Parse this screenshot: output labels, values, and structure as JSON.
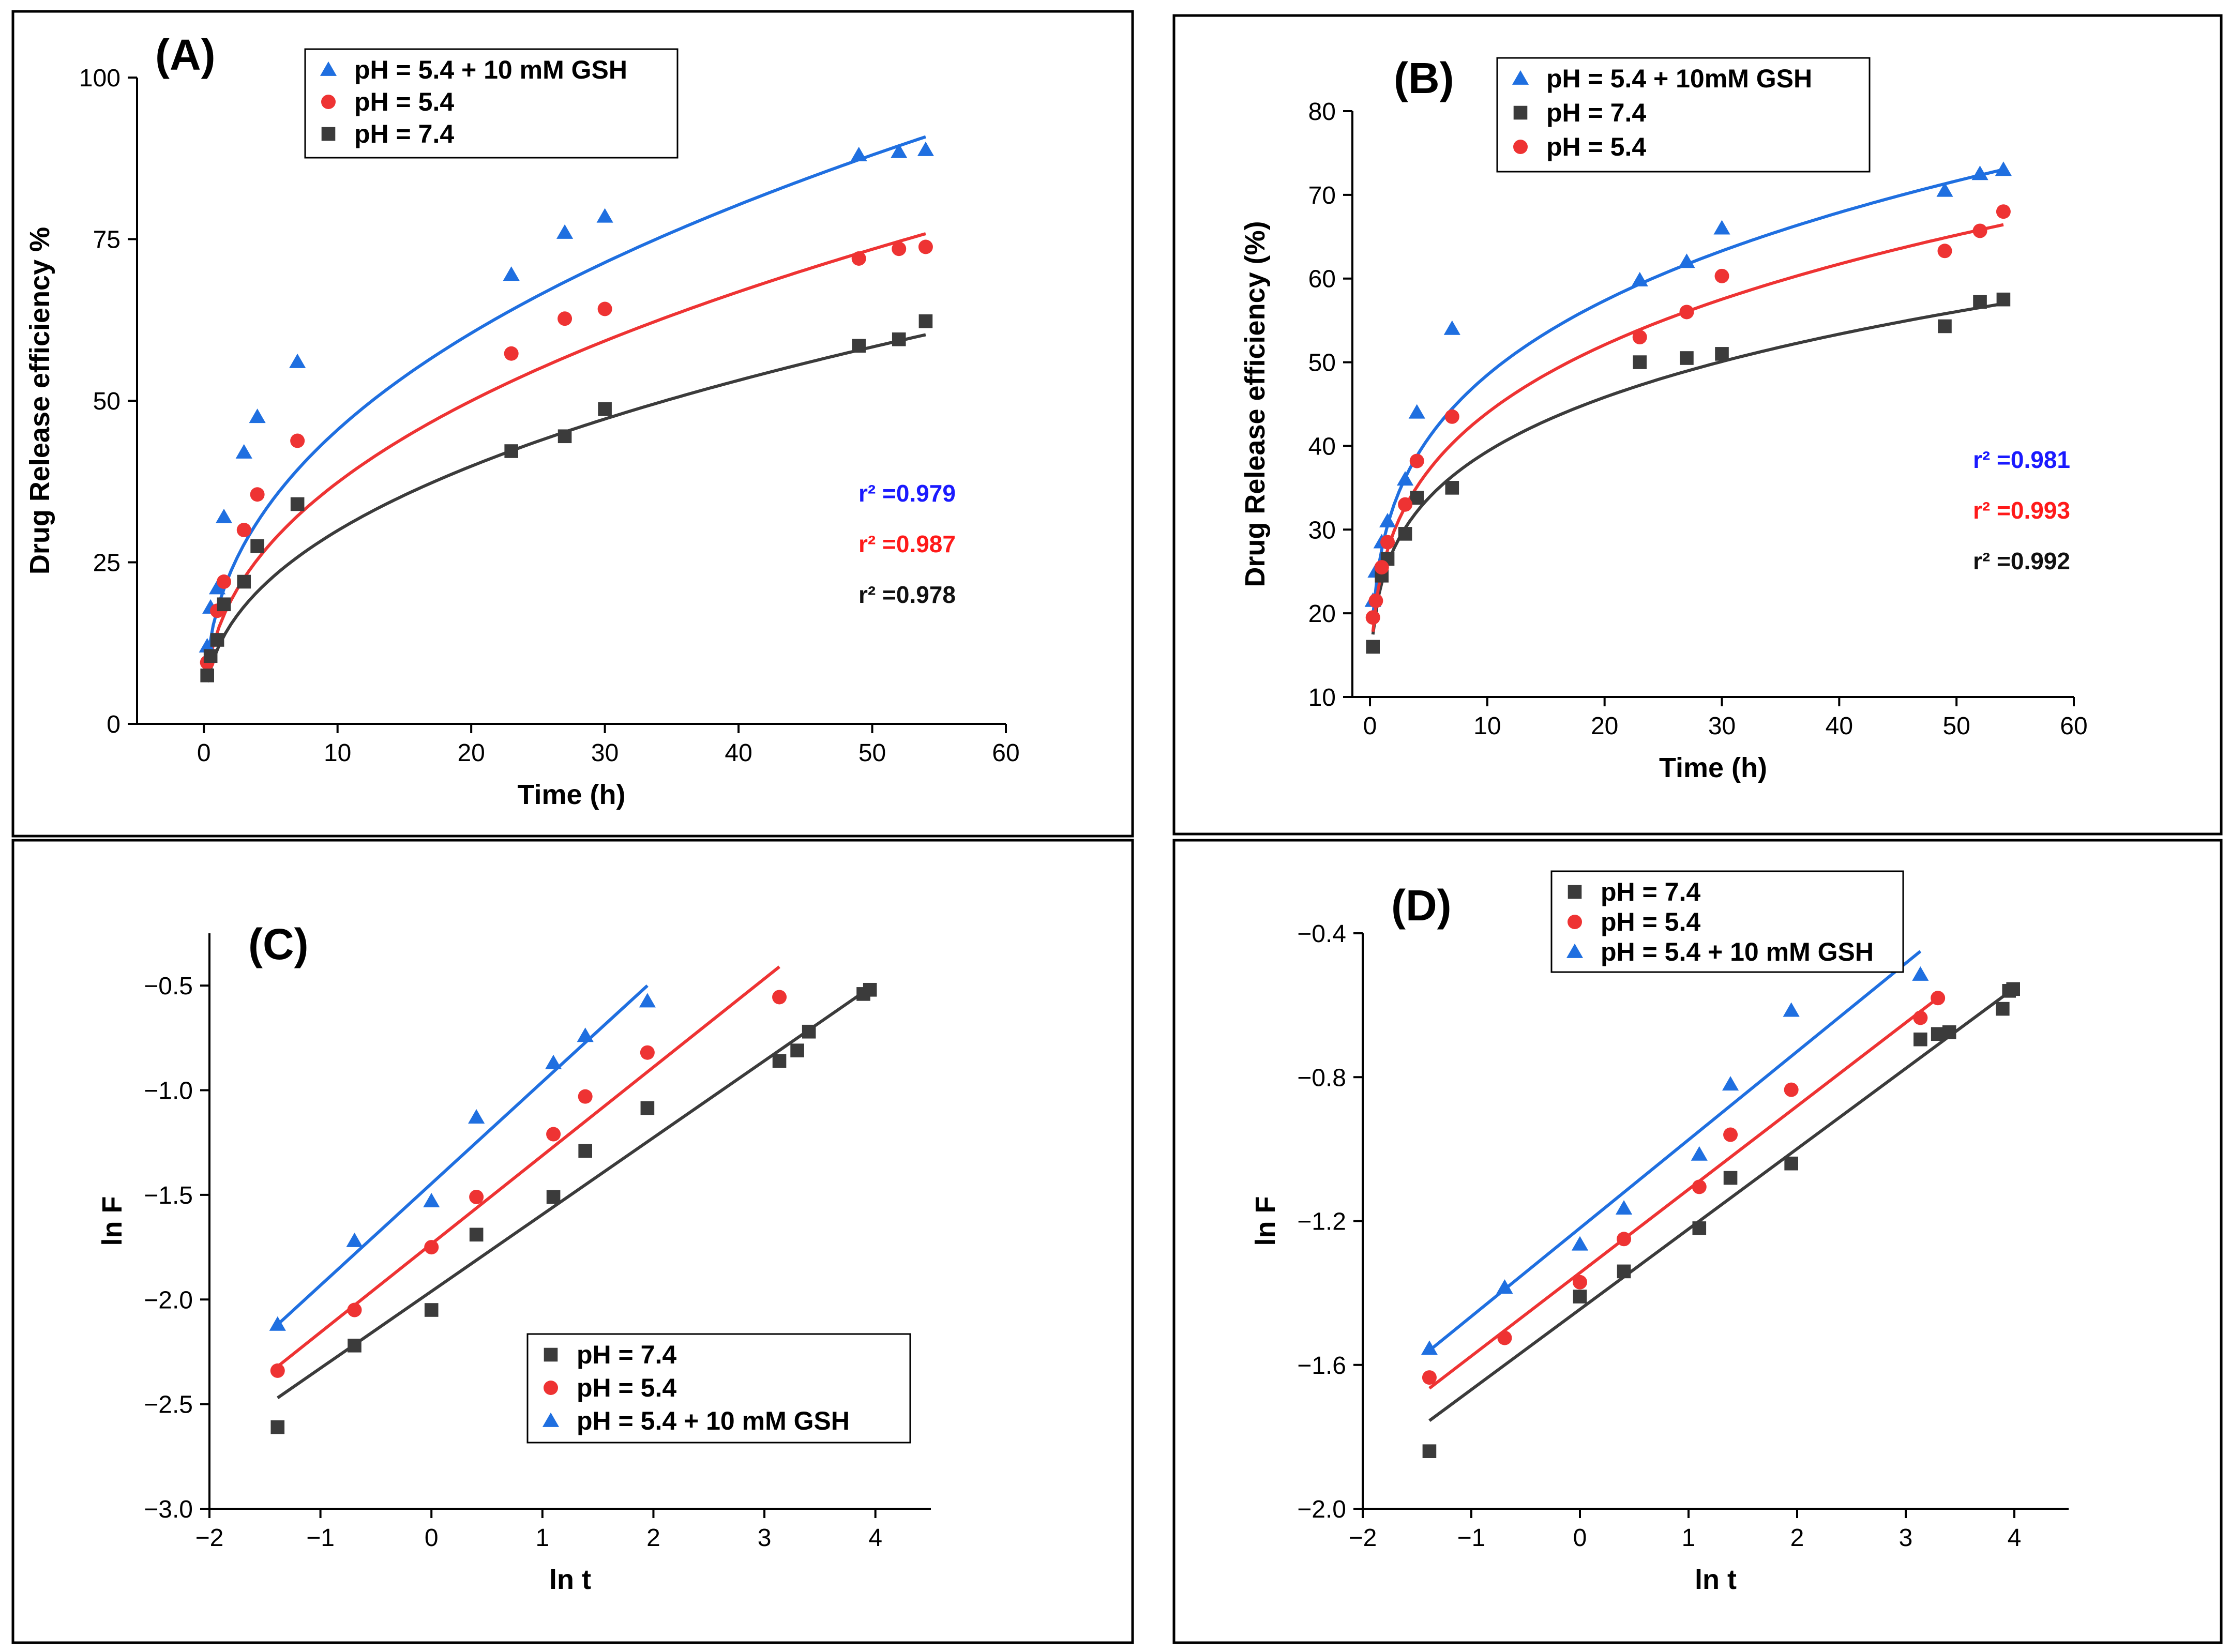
{
  "colors": {
    "black": "#3b3b3b",
    "red": "#ee3333",
    "blue": "#1f6fe0",
    "r2_blue": "#1a1aff",
    "r2_red": "#ff1a1a",
    "r2_black": "#111111"
  },
  "chart_data": [
    {
      "id": "A",
      "panel_label": "(A)",
      "type": "scatter",
      "fit": "power",
      "xlabel": "Time (h)",
      "ylabel": "Drug Release efficiency %",
      "xlim": [
        -5,
        60
      ],
      "ylim": [
        0,
        100
      ],
      "xticks": [
        0,
        10,
        20,
        30,
        40,
        50,
        60
      ],
      "yticks": [
        0,
        25,
        50,
        75,
        100
      ],
      "legend_position": "top-left",
      "series": [
        {
          "name": "pH = 5.4 + 10 mM GSH",
          "color_key": "blue",
          "marker": "triangle",
          "x": [
            0.25,
            0.5,
            1,
            1.5,
            3,
            4,
            7,
            23,
            27,
            30,
            49,
            52,
            54
          ],
          "y": [
            12,
            18,
            21,
            32,
            42,
            47.5,
            56,
            69.5,
            76,
            78.5,
            88,
            88.5,
            88.8
          ],
          "fit_a": 17.7,
          "fit_b": 0.41,
          "r2": "r² =0.979",
          "r2_color_key": "r2_blue"
        },
        {
          "name": "pH = 5.4",
          "color_key": "red",
          "marker": "circle",
          "x": [
            0.25,
            1,
            1.5,
            3,
            4,
            7,
            23,
            27,
            30,
            49,
            52,
            54
          ],
          "y": [
            9.5,
            17.5,
            22,
            30,
            35.5,
            43.8,
            57.3,
            62.7,
            64.2,
            72,
            73.5,
            73.8
          ],
          "fit_a": 14.2,
          "fit_b": 0.42,
          "r2": "r² =0.987",
          "r2_color_key": "r2_red"
        },
        {
          "name": "pH = 7.4",
          "color_key": "black",
          "marker": "square",
          "x": [
            0.25,
            0.5,
            1,
            1.5,
            3,
            4,
            7,
            23,
            27,
            30,
            49,
            52,
            54
          ],
          "y": [
            7.5,
            10.5,
            13,
            18.5,
            22,
            27.5,
            34,
            42.2,
            44.5,
            48.7,
            58.5,
            59.5,
            62.3
          ],
          "fit_a": 11.5,
          "fit_b": 0.415,
          "r2": "r² =0.978",
          "r2_color_key": "r2_black"
        }
      ],
      "legend_order": [
        0,
        1,
        2
      ]
    },
    {
      "id": "B",
      "panel_label": "(B)",
      "type": "scatter",
      "fit": "power",
      "xlabel": "Time (h)",
      "ylabel": "Drug Release efficiency (%)",
      "xlim": [
        -1.5,
        60
      ],
      "ylim": [
        10,
        80
      ],
      "xticks": [
        0,
        10,
        20,
        30,
        40,
        50,
        60
      ],
      "yticks": [
        10,
        20,
        30,
        40,
        50,
        60,
        70,
        80
      ],
      "legend_position": "top-left",
      "series": [
        {
          "name": "pH = 5.4 + 10mM GSH",
          "color_key": "blue",
          "marker": "triangle",
          "x": [
            0.25,
            0.5,
            1,
            1.5,
            3,
            4,
            7,
            23,
            27,
            30,
            49,
            52,
            54
          ],
          "y": [
            21.5,
            25,
            28.5,
            31,
            36,
            44,
            54,
            59.8,
            62,
            66,
            70.5,
            72.5,
            73
          ],
          "fit_a": 27.7,
          "fit_b": 0.243,
          "r2": "r² =0.981",
          "r2_color_key": "r2_blue"
        },
        {
          "name": "pH = 7.4",
          "color_key": "black",
          "marker": "square",
          "x": [
            0.25,
            1,
            1.5,
            3,
            4,
            7,
            23,
            27,
            30,
            49,
            52,
            54
          ],
          "y": [
            16,
            24.5,
            26.5,
            29.5,
            33.8,
            35,
            50,
            50.5,
            51,
            54.3,
            57.2,
            57.5
          ],
          "fit_a": 23.7,
          "fit_b": 0.22,
          "r2": "r² =0.992",
          "r2_color_key": "r2_black"
        },
        {
          "name": "pH = 5.4",
          "color_key": "red",
          "marker": "circle",
          "x": [
            0.25,
            0.5,
            1,
            1.5,
            3,
            4,
            7,
            23,
            27,
            30,
            49,
            52,
            54
          ],
          "y": [
            19.5,
            21.5,
            25.5,
            28.5,
            33,
            38.2,
            43.5,
            53,
            56,
            60.3,
            63.3,
            65.7,
            68
          ],
          "fit_a": 25.0,
          "fit_b": 0.245,
          "r2": "r² =0.993",
          "r2_color_key": "r2_red"
        }
      ],
      "legend_order": [
        0,
        1,
        2
      ]
    },
    {
      "id": "C",
      "panel_label": "(C)",
      "type": "scatter",
      "fit": "linear",
      "xlabel": "ln t",
      "ylabel": "ln F",
      "xlim": [
        -2,
        4.5
      ],
      "ylim": [
        -3.0,
        -0.25
      ],
      "xticks": [
        -2,
        -1,
        0,
        1,
        2,
        3,
        4
      ],
      "yticks": [
        -3.0,
        -2.5,
        -2.0,
        -1.5,
        -1.0,
        -0.5
      ],
      "ytick_labels": [
        "−3.0",
        "−2.5",
        "−2.0",
        "−1.5",
        "−1.0",
        "−0.5"
      ],
      "xtick_labels": [
        "−2",
        "−1",
        "0",
        "1",
        "2",
        "3",
        "4"
      ],
      "legend_position": "bottom-right",
      "series": [
        {
          "name": "pH = 7.4",
          "color_key": "black",
          "marker": "square",
          "x": [
            -1.386,
            -0.693,
            0,
            0.405,
            1.099,
            1.386,
            1.946,
            3.135,
            3.296,
            3.401,
            3.892,
            3.951
          ],
          "y": [
            -2.61,
            -2.22,
            -2.05,
            -1.69,
            -1.51,
            -1.29,
            -1.085,
            -0.86,
            -0.81,
            -0.72,
            -0.54,
            -0.52
          ],
          "fit_x": [
            -1.386,
            3.951
          ],
          "fit_y": [
            -2.47,
            -0.51
          ]
        },
        {
          "name": "pH = 5.4",
          "color_key": "red",
          "marker": "circle",
          "x": [
            -1.386,
            -0.693,
            0,
            0.405,
            1.099,
            1.386,
            1.946,
            3.135
          ],
          "y": [
            -2.34,
            -2.05,
            -1.75,
            -1.51,
            -1.21,
            -1.03,
            -0.82,
            -0.555
          ],
          "fit_x": [
            -1.386,
            3.135
          ],
          "fit_y": [
            -2.32,
            -0.41
          ]
        },
        {
          "name": "pH = 5.4 + 10 mM GSH",
          "color_key": "blue",
          "marker": "triangle",
          "x": [
            -1.386,
            -0.693,
            0,
            0.405,
            1.099,
            1.386,
            1.946
          ],
          "y": [
            -2.12,
            -1.72,
            -1.53,
            -1.13,
            -0.87,
            -0.74,
            -0.575
          ],
          "fit_x": [
            -1.386,
            1.946
          ],
          "fit_y": [
            -2.12,
            -0.5
          ]
        }
      ],
      "legend_order": [
        0,
        1,
        2
      ]
    },
    {
      "id": "D",
      "panel_label": "(D)",
      "type": "scatter",
      "fit": "linear",
      "xlabel": "ln t",
      "ylabel": "ln F",
      "xlim": [
        -2,
        4.5
      ],
      "ylim": [
        -2.0,
        -0.4
      ],
      "xticks": [
        -2,
        -1,
        0,
        1,
        2,
        3,
        4
      ],
      "yticks": [
        -2.0,
        -1.6,
        -1.2,
        -0.8,
        -0.4
      ],
      "ytick_labels": [
        "−2.0",
        "−1.6",
        "−1.2",
        "−0.8",
        "−0.4"
      ],
      "xtick_labels": [
        "−2",
        "−1",
        "0",
        "1",
        "2",
        "3",
        "4"
      ],
      "legend_position": "top-left",
      "series": [
        {
          "name": "pH = 7.4",
          "color_key": "black",
          "marker": "square",
          "x": [
            -1.386,
            0,
            0.405,
            1.099,
            1.386,
            1.946,
            3.135,
            3.296,
            3.401,
            3.892,
            3.951,
            3.989
          ],
          "y": [
            -1.84,
            -1.41,
            -1.34,
            -1.22,
            -1.08,
            -1.04,
            -0.695,
            -0.68,
            -0.675,
            -0.61,
            -0.56,
            -0.555
          ],
          "fit_x": [
            -1.386,
            3.989
          ],
          "fit_y": [
            -1.755,
            -0.555
          ]
        },
        {
          "name": "pH = 5.4",
          "color_key": "red",
          "marker": "circle",
          "x": [
            -1.386,
            -0.693,
            0,
            0.405,
            1.099,
            1.386,
            1.946,
            3.135,
            3.296
          ],
          "y": [
            -1.635,
            -1.525,
            -1.37,
            -1.25,
            -1.105,
            -0.96,
            -0.835,
            -0.635,
            -0.58
          ],
          "fit_x": [
            -1.386,
            3.296
          ],
          "fit_y": [
            -1.665,
            -0.58
          ]
        },
        {
          "name": "pH = 5.4 + 10 mM GSH",
          "color_key": "blue",
          "marker": "triangle",
          "x": [
            -1.386,
            -0.693,
            0,
            0.405,
            1.099,
            1.386,
            1.946,
            3.135
          ],
          "y": [
            -1.555,
            -1.385,
            -1.265,
            -1.165,
            -1.015,
            -0.82,
            -0.615,
            -0.515
          ],
          "fit_x": [
            -1.386,
            3.135
          ],
          "fit_y": [
            -1.56,
            -0.45
          ]
        }
      ],
      "legend_order": [
        0,
        1,
        2
      ]
    }
  ]
}
